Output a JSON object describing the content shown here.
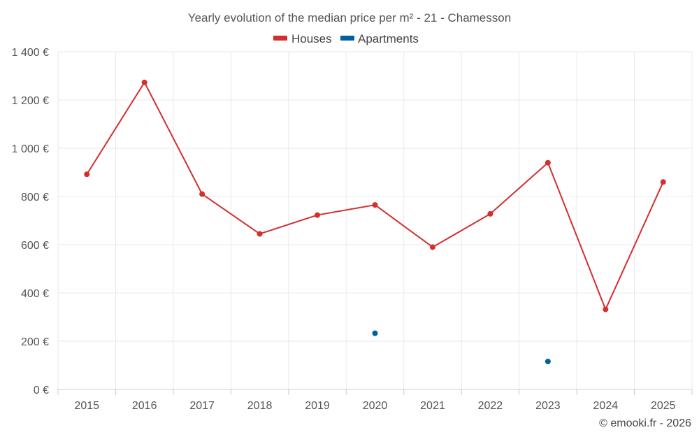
{
  "chart_data": {
    "type": "line",
    "title": "Yearly evolution of the median price per m² - 21 - Chamesson",
    "categories": [
      "2015",
      "2016",
      "2017",
      "2018",
      "2019",
      "2020",
      "2021",
      "2022",
      "2023",
      "2024",
      "2025"
    ],
    "series": [
      {
        "name": "Houses",
        "color": "#d32f2f",
        "line": true,
        "values": [
          892,
          1273,
          810,
          645,
          723,
          765,
          590,
          728,
          940,
          332,
          860
        ]
      },
      {
        "name": "Apartments",
        "color": "#00629b",
        "line": false,
        "values": [
          null,
          null,
          null,
          null,
          null,
          233,
          null,
          null,
          116,
          null,
          null
        ]
      }
    ],
    "yticks": [
      0,
      200,
      400,
      600,
      800,
      1000,
      1200,
      1400
    ],
    "ytick_labels": [
      "0 €",
      "200 €",
      "400 €",
      "600 €",
      "800 €",
      "1 000 €",
      "1 200 €",
      "1 400 €"
    ],
    "ylim": [
      0,
      1400
    ],
    "xlabel": "",
    "ylabel": "",
    "grid": true,
    "legend_position": "top-center"
  },
  "credit": "© emooki.fr - 2026"
}
